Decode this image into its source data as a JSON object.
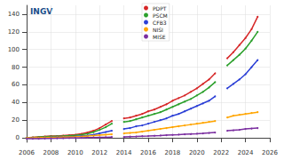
{
  "chart_data": {
    "type": "line",
    "marker": "dot",
    "grid": true,
    "legend": "top",
    "annotations": [
      "INGV"
    ],
    "xlim": [
      2006,
      2026
    ],
    "xticks": [
      2006,
      2008,
      2010,
      2012,
      2014,
      2016,
      2018,
      2020,
      2022,
      2024,
      2026
    ],
    "ylim": [
      -5,
      150
    ],
    "yticks": [
      0,
      20,
      40,
      60,
      80,
      100,
      120,
      140
    ],
    "x": [
      2006,
      2006.5,
      2007,
      2007.5,
      2008,
      2008.5,
      2009,
      2009.5,
      2010,
      2010.5,
      2011,
      2011.5,
      2012,
      2012.5,
      2013,
      2013.5,
      2014,
      2014.5,
      2015,
      2015.5,
      2016,
      2016.5,
      2017,
      2017.5,
      2018,
      2018.5,
      2019,
      2019.5,
      2020,
      2020.5,
      2021,
      2021.5,
      2022,
      2022.5,
      2023,
      2023.5,
      2024,
      2024.5,
      2025
    ],
    "series": [
      {
        "name": "PDPT",
        "color": "#d62728",
        "values": [
          0,
          0.5,
          1,
          1.5,
          2,
          2,
          2.5,
          3,
          3.5,
          4.5,
          6,
          8,
          11,
          15,
          19,
          null,
          22,
          23,
          25,
          27,
          30,
          32,
          35,
          38,
          42,
          45,
          48,
          52,
          56,
          61,
          66,
          73,
          null,
          90,
          97,
          105,
          113,
          123,
          137
        ]
      },
      {
        "name": "PSCM",
        "color": "#2ca02c",
        "values": [
          0,
          0.3,
          0.8,
          1.2,
          1.6,
          1.8,
          2,
          2.4,
          2.8,
          3.5,
          4.5,
          6.5,
          9,
          12,
          16,
          null,
          18,
          19,
          21,
          23,
          25,
          27,
          29,
          32,
          35,
          38,
          41,
          44,
          48,
          52,
          57,
          63,
          null,
          82,
          88,
          94,
          101,
          110,
          120
        ]
      },
      {
        "name": "CFB3",
        "color": "#2b3fd6",
        "values": [
          0,
          0,
          0.2,
          0.4,
          0.6,
          0.8,
          1,
          1.2,
          1.5,
          2,
          2.5,
          3.5,
          5,
          6.5,
          8,
          null,
          10,
          11,
          13,
          14,
          16,
          18,
          20,
          22,
          25,
          27,
          30,
          33,
          36,
          39,
          42,
          47,
          null,
          56,
          61,
          66,
          72,
          80,
          88
        ]
      },
      {
        "name": "NISI",
        "color": "#ffa500",
        "values": [
          0,
          0,
          0.2,
          0.3,
          0.5,
          0.6,
          0.8,
          1,
          1.2,
          1.5,
          2,
          2.5,
          3,
          3.5,
          4,
          null,
          5,
          5.5,
          6,
          7,
          8,
          9,
          10,
          11,
          12,
          13,
          14,
          15,
          16,
          17,
          18,
          19,
          null,
          23,
          25,
          26,
          27,
          28,
          29
        ]
      },
      {
        "name": "MISE",
        "color": "#7b2fa0",
        "values": [
          -1,
          -1,
          -1,
          -0.8,
          -0.6,
          -0.5,
          -0.4,
          -0.3,
          -0.2,
          0,
          0.2,
          0.3,
          0.5,
          0.6,
          0.8,
          null,
          1,
          1.3,
          1.5,
          1.8,
          2,
          2.3,
          2.6,
          3,
          3.3,
          3.6,
          4,
          4.3,
          4.6,
          5,
          5.5,
          6,
          null,
          8,
          8.5,
          9,
          10,
          10.5,
          11
        ]
      }
    ]
  }
}
